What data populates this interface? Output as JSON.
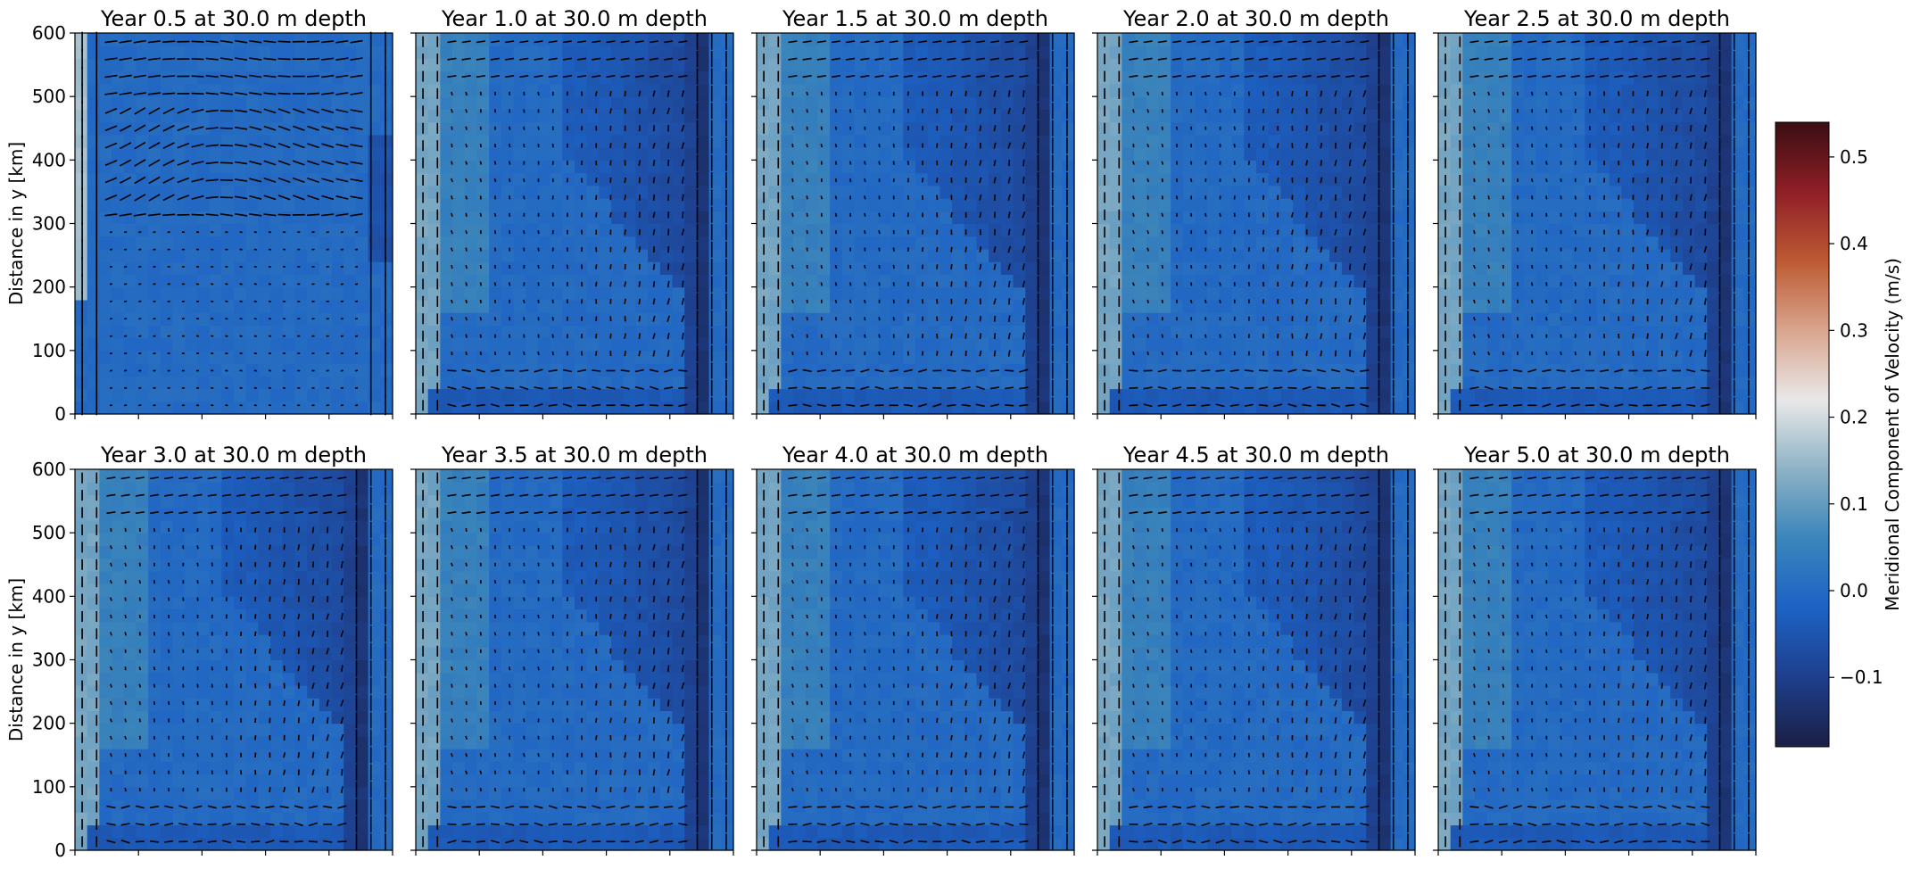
{
  "chart_data": {
    "type": "heatmap",
    "grid": false,
    "y_axis": {
      "label": "Distance in y [km]",
      "ticks": [
        0,
        100,
        200,
        300,
        400,
        500,
        600
      ],
      "range": [
        0,
        600
      ]
    },
    "x_ticks_count": 6,
    "colorbar": {
      "label": "Meridional Component of Velocity (m/s)",
      "ticks": [
        "−0.1",
        "0.0",
        "0.1",
        "0.2",
        "0.3",
        "0.4",
        "0.5"
      ],
      "tick_values": [
        -0.1,
        0.0,
        0.1,
        0.2,
        0.3,
        0.4,
        0.5
      ],
      "range": [
        -0.18,
        0.54
      ],
      "colormap": [
        "#1a1f44",
        "#1e3f8c",
        "#1d62c4",
        "#3b85bb",
        "#8db2c5",
        "#e9e8e8",
        "#d9a58e",
        "#bd5a33",
        "#8f1e26",
        "#3a0e12"
      ]
    },
    "overlay": "velocity quiver arrows",
    "panels": [
      {
        "title": "Year 0.5 at 30.0 m depth"
      },
      {
        "title": "Year 1.0 at 30.0 m depth"
      },
      {
        "title": "Year 1.5 at 30.0 m depth"
      },
      {
        "title": "Year 2.0 at 30.0 m depth"
      },
      {
        "title": "Year 2.5 at 30.0 m depth"
      },
      {
        "title": "Year 3.0 at 30.0 m depth"
      },
      {
        "title": "Year 3.5 at 30.0 m depth"
      },
      {
        "title": "Year 4.0 at 30.0 m depth"
      },
      {
        "title": "Year 4.5 at 30.0 m depth"
      },
      {
        "title": "Year 5.0 at 30.0 m depth"
      }
    ]
  }
}
